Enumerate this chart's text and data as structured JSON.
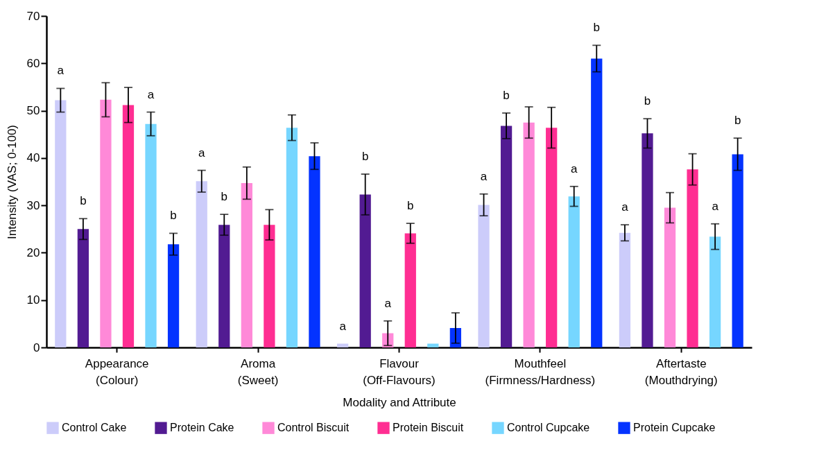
{
  "chart_data": {
    "type": "bar",
    "xlabel": "Modality and Attribute",
    "ylabel": "Intensity (VAS; 0-100)",
    "categories": [
      "Appearance\n(Colour)",
      "Aroma\n(Sweet)",
      "Flavour\n(Off-Flavours)",
      "Mouthfeel\n(Firmness/Hardness)",
      "Aftertaste\n(Mouthdrying)"
    ],
    "ylim": [
      0,
      70
    ],
    "yticks": [
      0,
      10,
      20,
      30,
      40,
      50,
      60,
      70
    ],
    "grid": false,
    "legend": "bottom",
    "series": [
      {
        "name": "Control Cake",
        "color": "#ccccfa",
        "values": [
          52.2,
          35.1,
          0.8,
          30.1,
          24.2
        ],
        "errors": [
          2.5,
          2.3,
          null,
          2.3,
          1.7
        ],
        "value_labels": [
          "a",
          "a",
          "a",
          "a",
          "a"
        ]
      },
      {
        "name": "Protein Cake",
        "color": "#521b92",
        "values": [
          25.0,
          25.9,
          32.3,
          46.8,
          45.2
        ],
        "errors": [
          2.2,
          2.2,
          4.3,
          2.7,
          3.1
        ],
        "value_labels": [
          "b",
          "b",
          "b",
          "b",
          "b"
        ]
      },
      {
        "name": "Control Biscuit",
        "color": "#ff89d8",
        "values": [
          52.3,
          34.7,
          3.0,
          47.5,
          29.5
        ],
        "errors": [
          3.6,
          3.4,
          2.6,
          3.3,
          3.2
        ],
        "value_labels": [
          null,
          null,
          "a",
          null,
          null
        ]
      },
      {
        "name": "Protein Biscuit",
        "color": "#ff2e92",
        "values": [
          51.2,
          25.9,
          24.1,
          46.4,
          37.6
        ],
        "errors": [
          3.7,
          3.2,
          2.1,
          4.3,
          3.3
        ],
        "value_labels": [
          null,
          null,
          "b",
          null,
          null
        ]
      },
      {
        "name": "Control Cupcake",
        "color": "#76d6ff",
        "values": [
          47.2,
          46.4,
          0.8,
          31.9,
          23.4
        ],
        "errors": [
          2.5,
          2.7,
          null,
          2.1,
          2.7
        ],
        "value_labels": [
          "a",
          null,
          null,
          "a",
          "a"
        ]
      },
      {
        "name": "Protein Cupcake",
        "color": "#0433ff",
        "values": [
          21.8,
          40.4,
          4.1,
          61.0,
          40.8
        ],
        "errors": [
          2.3,
          2.8,
          3.2,
          2.8,
          3.4
        ],
        "value_labels": [
          "b",
          null,
          null,
          "b",
          "b"
        ]
      }
    ]
  }
}
